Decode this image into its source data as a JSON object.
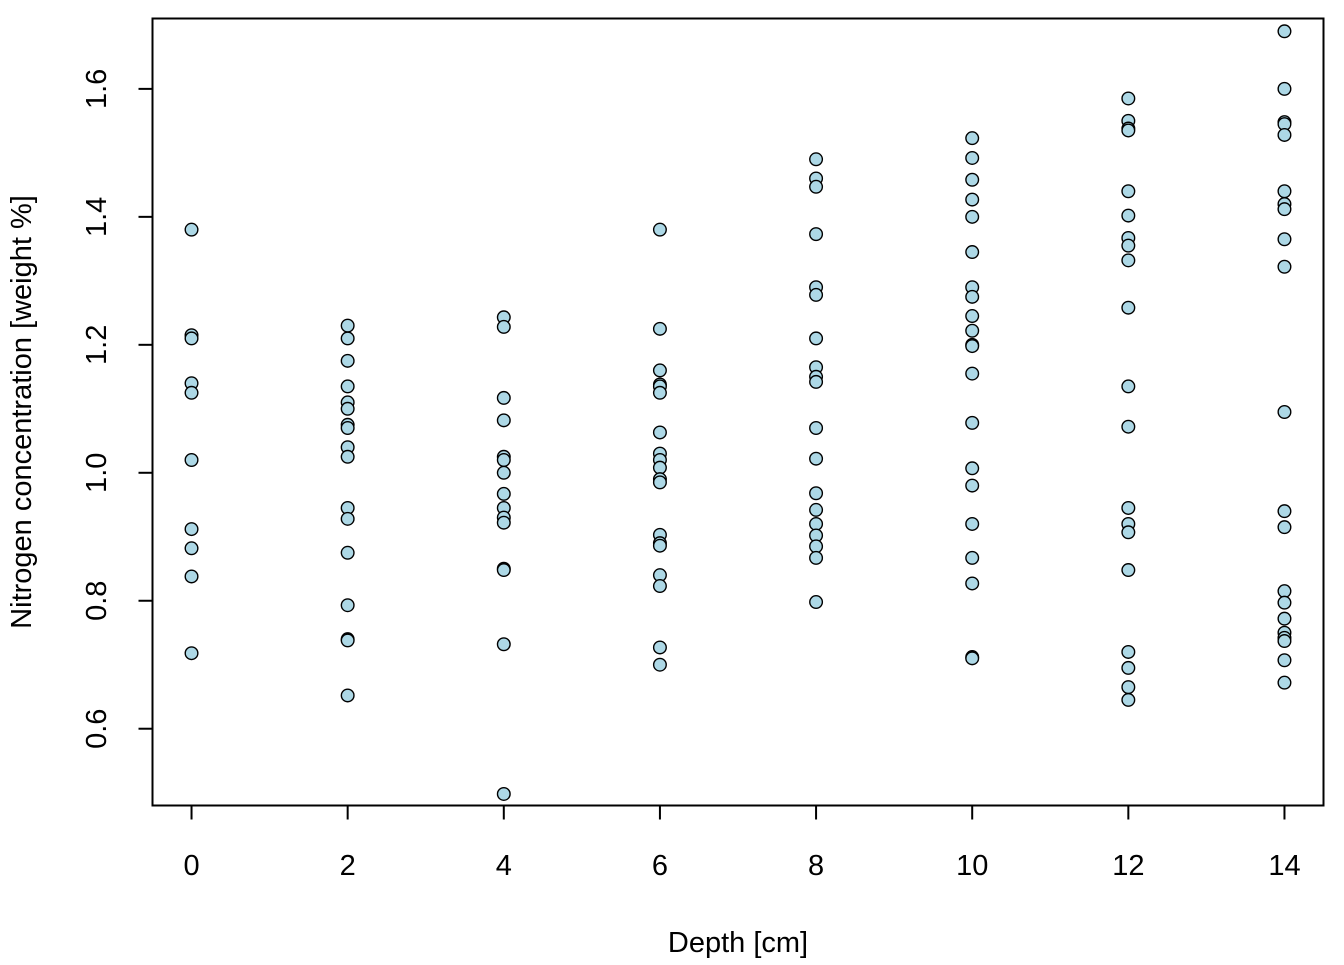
{
  "chart_data": {
    "type": "scatter",
    "title": "",
    "xlabel": "Depth [cm]",
    "ylabel": "Nitrogen concentration [weight %]",
    "xlim": [
      -0.5,
      14.5
    ],
    "ylim": [
      0.48,
      1.71
    ],
    "xticks": [
      0,
      2,
      4,
      6,
      8,
      10,
      12,
      14
    ],
    "yticks": [
      0.6,
      0.8,
      1.0,
      1.2,
      1.4,
      1.6
    ],
    "ytick_labels": [
      "0.6",
      "0.8",
      "1.0",
      "1.2",
      "1.4",
      "1.6"
    ],
    "xtick_labels": [
      "0",
      "2",
      "4",
      "6",
      "8",
      "10",
      "12",
      "14"
    ],
    "grid": false,
    "marker_fill": "#add8e6",
    "marker_edge": "#000000",
    "series": [
      {
        "points": [
          [
            0,
            1.38
          ],
          [
            0,
            1.215
          ],
          [
            0,
            1.21
          ],
          [
            0,
            1.14
          ],
          [
            0,
            1.125
          ],
          [
            0,
            1.02
          ],
          [
            0,
            0.912
          ],
          [
            0,
            0.882
          ],
          [
            0,
            0.838
          ],
          [
            0,
            0.718
          ],
          [
            2,
            1.23
          ],
          [
            2,
            1.21
          ],
          [
            2,
            1.175
          ],
          [
            2,
            1.135
          ],
          [
            2,
            1.11
          ],
          [
            2,
            1.1
          ],
          [
            2,
            1.075
          ],
          [
            2,
            1.07
          ],
          [
            2,
            1.04
          ],
          [
            2,
            1.025
          ],
          [
            2,
            0.945
          ],
          [
            2,
            0.928
          ],
          [
            2,
            0.875
          ],
          [
            2,
            0.793
          ],
          [
            2,
            0.74
          ],
          [
            2,
            0.738
          ],
          [
            2,
            0.652
          ],
          [
            4,
            1.243
          ],
          [
            4,
            1.228
          ],
          [
            4,
            1.117
          ],
          [
            4,
            1.082
          ],
          [
            4,
            1.025
          ],
          [
            4,
            1.02
          ],
          [
            4,
            1.0
          ],
          [
            4,
            0.967
          ],
          [
            4,
            0.945
          ],
          [
            4,
            0.93
          ],
          [
            4,
            0.922
          ],
          [
            4,
            0.85
          ],
          [
            4,
            0.848
          ],
          [
            4,
            0.732
          ],
          [
            4,
            0.498
          ],
          [
            6,
            1.38
          ],
          [
            6,
            1.225
          ],
          [
            6,
            1.16
          ],
          [
            6,
            1.138
          ],
          [
            6,
            1.135
          ],
          [
            6,
            1.125
          ],
          [
            6,
            1.063
          ],
          [
            6,
            1.03
          ],
          [
            6,
            1.02
          ],
          [
            6,
            1.008
          ],
          [
            6,
            0.99
          ],
          [
            6,
            0.985
          ],
          [
            6,
            0.903
          ],
          [
            6,
            0.89
          ],
          [
            6,
            0.886
          ],
          [
            6,
            0.84
          ],
          [
            6,
            0.823
          ],
          [
            6,
            0.727
          ],
          [
            6,
            0.7
          ],
          [
            8,
            1.49
          ],
          [
            8,
            1.46
          ],
          [
            8,
            1.447
          ],
          [
            8,
            1.373
          ],
          [
            8,
            1.29
          ],
          [
            8,
            1.278
          ],
          [
            8,
            1.21
          ],
          [
            8,
            1.165
          ],
          [
            8,
            1.15
          ],
          [
            8,
            1.142
          ],
          [
            8,
            1.07
          ],
          [
            8,
            1.022
          ],
          [
            8,
            0.968
          ],
          [
            8,
            0.942
          ],
          [
            8,
            0.92
          ],
          [
            8,
            0.902
          ],
          [
            8,
            0.885
          ],
          [
            8,
            0.867
          ],
          [
            8,
            0.798
          ],
          [
            10,
            1.523
          ],
          [
            10,
            1.492
          ],
          [
            10,
            1.458
          ],
          [
            10,
            1.427
          ],
          [
            10,
            1.4
          ],
          [
            10,
            1.345
          ],
          [
            10,
            1.29
          ],
          [
            10,
            1.275
          ],
          [
            10,
            1.245
          ],
          [
            10,
            1.222
          ],
          [
            10,
            1.2
          ],
          [
            10,
            1.198
          ],
          [
            10,
            1.155
          ],
          [
            10,
            1.078
          ],
          [
            10,
            1.007
          ],
          [
            10,
            0.98
          ],
          [
            10,
            0.92
          ],
          [
            10,
            0.867
          ],
          [
            10,
            0.827
          ],
          [
            10,
            0.712
          ],
          [
            10,
            0.71
          ],
          [
            12,
            1.585
          ],
          [
            12,
            1.55
          ],
          [
            12,
            1.538
          ],
          [
            12,
            1.535
          ],
          [
            12,
            1.44
          ],
          [
            12,
            1.402
          ],
          [
            12,
            1.367
          ],
          [
            12,
            1.355
          ],
          [
            12,
            1.332
          ],
          [
            12,
            1.258
          ],
          [
            12,
            1.135
          ],
          [
            12,
            1.072
          ],
          [
            12,
            0.945
          ],
          [
            12,
            0.92
          ],
          [
            12,
            0.907
          ],
          [
            12,
            0.848
          ],
          [
            12,
            0.72
          ],
          [
            12,
            0.695
          ],
          [
            12,
            0.665
          ],
          [
            12,
            0.645
          ],
          [
            14,
            1.69
          ],
          [
            14,
            1.6
          ],
          [
            14,
            1.548
          ],
          [
            14,
            1.545
          ],
          [
            14,
            1.528
          ],
          [
            14,
            1.44
          ],
          [
            14,
            1.42
          ],
          [
            14,
            1.412
          ],
          [
            14,
            1.365
          ],
          [
            14,
            1.322
          ],
          [
            14,
            1.095
          ],
          [
            14,
            0.94
          ],
          [
            14,
            0.915
          ],
          [
            14,
            0.815
          ],
          [
            14,
            0.797
          ],
          [
            14,
            0.772
          ],
          [
            14,
            0.75
          ],
          [
            14,
            0.742
          ],
          [
            14,
            0.737
          ],
          [
            14,
            0.707
          ],
          [
            14,
            0.672
          ]
        ]
      }
    ]
  }
}
